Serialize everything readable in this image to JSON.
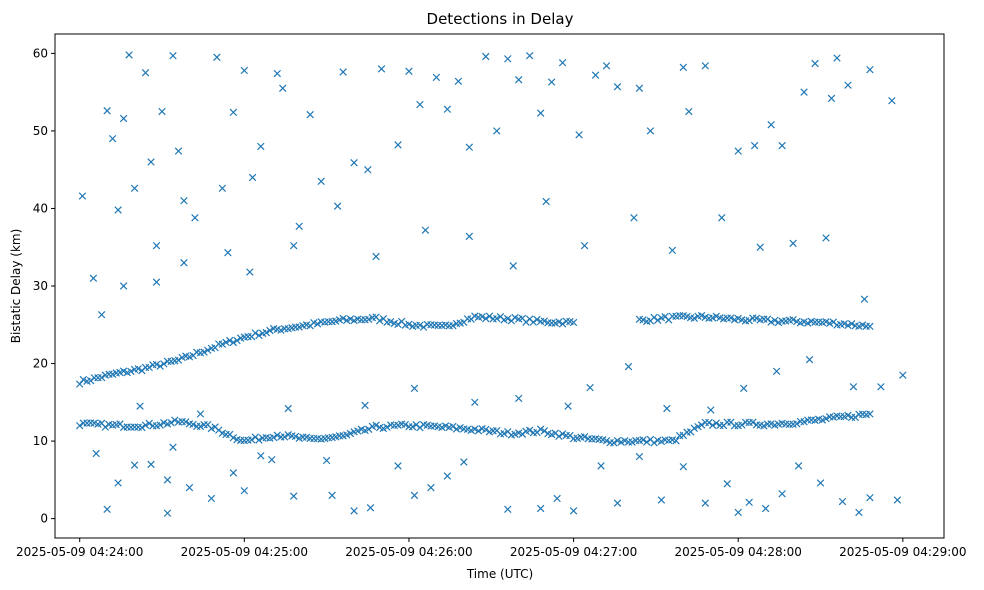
{
  "chart_data": {
    "type": "scatter",
    "title": "Detections in Delay",
    "xlabel": "Time (UTC)",
    "ylabel": "Bistatic Delay (km)",
    "x_axis": {
      "type": "time",
      "range": [
        "2025-05-09 04:23:51",
        "2025-05-09 04:29:15"
      ],
      "ticks": [
        "2025-05-09 04:24:00",
        "2025-05-09 04:25:00",
        "2025-05-09 04:26:00",
        "2025-05-09 04:27:00",
        "2025-05-09 04:28:00",
        "2025-05-09 04:29:00"
      ]
    },
    "ylim": [
      -2.5,
      62.5
    ],
    "yticks": [
      0,
      10,
      20,
      30,
      40,
      50,
      60
    ],
    "marker": "x",
    "color": "#1f77b4",
    "grid": false,
    "series": [
      {
        "tracks": [
          {
            "description_kind": "track",
            "points": [
              [
                "04:24:00",
                17.6
              ],
              [
                "04:24:12",
                18.6
              ],
              [
                "04:24:24",
                19.4
              ],
              [
                "04:24:36",
                20.4
              ],
              [
                "04:24:48",
                22.0
              ],
              [
                "04:25:00",
                23.4
              ],
              [
                "04:25:12",
                24.4
              ],
              [
                "04:25:24",
                25.0
              ],
              [
                "04:25:36",
                25.6
              ],
              [
                "04:25:48",
                25.8
              ],
              [
                "04:26:00",
                25.0
              ],
              [
                "04:26:12",
                24.7
              ],
              [
                "04:26:24",
                26.0
              ],
              [
                "04:26:36",
                25.8
              ],
              [
                "04:26:48",
                25.4
              ],
              [
                "04:27:00",
                25.3
              ]
            ]
          },
          {
            "description_kind": "track",
            "points": [
              [
                "04:27:24",
                25.6
              ],
              [
                "04:27:36",
                25.9
              ],
              [
                "04:27:48",
                26.0
              ],
              [
                "04:28:00",
                25.7
              ],
              [
                "04:28:12",
                25.5
              ],
              [
                "04:28:24",
                25.4
              ],
              [
                "04:28:36",
                25.2
              ],
              [
                "04:28:48",
                24.8
              ]
            ]
          },
          {
            "description_kind": "track",
            "points": [
              [
                "04:24:00",
                12.2
              ],
              [
                "04:24:12",
                12.0
              ],
              [
                "04:24:24",
                12.0
              ],
              [
                "04:24:36",
                12.5
              ],
              [
                "04:24:48",
                11.8
              ],
              [
                "04:25:00",
                10.0
              ],
              [
                "04:25:12",
                10.8
              ],
              [
                "04:25:24",
                10.2
              ],
              [
                "04:25:36",
                10.6
              ],
              [
                "04:25:48",
                11.8
              ],
              [
                "04:26:00",
                12.0
              ],
              [
                "04:26:12",
                11.8
              ],
              [
                "04:26:24",
                11.5
              ],
              [
                "04:26:36",
                11.0
              ],
              [
                "04:26:48",
                11.3
              ],
              [
                "04:27:00",
                10.5
              ],
              [
                "04:27:12",
                10.0
              ],
              [
                "04:27:24",
                10.0
              ],
              [
                "04:27:36",
                10.0
              ],
              [
                "04:27:48",
                12.2
              ],
              [
                "04:28:00",
                12.2
              ],
              [
                "04:28:12",
                12.2
              ],
              [
                "04:28:24",
                12.5
              ],
              [
                "04:28:36",
                13.0
              ],
              [
                "04:28:48",
                13.5
              ]
            ]
          }
        ],
        "scatter_points": [
          [
            "04:24:01",
            41.6
          ],
          [
            "04:24:05",
            31.0
          ],
          [
            "04:24:08",
            26.3
          ],
          [
            "04:24:10",
            52.6
          ],
          [
            "04:24:12",
            49.0
          ],
          [
            "04:24:14",
            39.8
          ],
          [
            "04:24:16",
            51.6
          ],
          [
            "04:24:18",
            59.8
          ],
          [
            "04:24:20",
            42.6
          ],
          [
            "04:24:24",
            57.5
          ],
          [
            "04:24:26",
            46.0
          ],
          [
            "04:24:28",
            35.2
          ],
          [
            "04:24:30",
            52.5
          ],
          [
            "04:24:32",
            0.7
          ],
          [
            "04:24:34",
            59.7
          ],
          [
            "04:24:36",
            47.4
          ],
          [
            "04:24:38",
            41.0
          ],
          [
            "04:24:42",
            38.8
          ],
          [
            "04:24:50",
            59.5
          ],
          [
            "04:24:52",
            42.6
          ],
          [
            "04:24:56",
            52.4
          ],
          [
            "04:25:00",
            57.8
          ],
          [
            "04:25:03",
            44.0
          ],
          [
            "04:25:06",
            48.0
          ],
          [
            "04:25:12",
            57.4
          ],
          [
            "04:25:14",
            55.5
          ],
          [
            "04:25:18",
            35.2
          ],
          [
            "04:25:24",
            52.1
          ],
          [
            "04:25:28",
            43.5
          ],
          [
            "04:25:36",
            57.6
          ],
          [
            "04:25:40",
            45.9
          ],
          [
            "04:25:45",
            45.0
          ],
          [
            "04:25:50",
            58.0
          ],
          [
            "04:25:56",
            48.2
          ],
          [
            "04:26:00",
            57.7
          ],
          [
            "04:26:04",
            53.4
          ],
          [
            "04:26:10",
            56.9
          ],
          [
            "04:26:14",
            52.8
          ],
          [
            "04:26:18",
            56.4
          ],
          [
            "04:26:22",
            47.9
          ],
          [
            "04:26:28",
            59.6
          ],
          [
            "04:26:32",
            50.0
          ],
          [
            "04:26:36",
            59.3
          ],
          [
            "04:26:40",
            56.6
          ],
          [
            "04:26:44",
            59.7
          ],
          [
            "04:26:48",
            52.3
          ],
          [
            "04:26:52",
            56.3
          ],
          [
            "04:26:56",
            58.8
          ],
          [
            "04:27:02",
            49.5
          ],
          [
            "04:27:08",
            57.2
          ],
          [
            "04:27:12",
            58.4
          ],
          [
            "04:27:16",
            55.7
          ],
          [
            "04:27:24",
            55.5
          ],
          [
            "04:27:28",
            50.0
          ],
          [
            "04:27:40",
            58.2
          ],
          [
            "04:27:42",
            52.5
          ],
          [
            "04:27:48",
            58.4
          ],
          [
            "04:28:00",
            47.4
          ],
          [
            "04:28:06",
            48.1
          ],
          [
            "04:28:12",
            50.8
          ],
          [
            "04:28:16",
            48.1
          ],
          [
            "04:28:24",
            55.0
          ],
          [
            "04:28:28",
            58.7
          ],
          [
            "04:28:34",
            54.2
          ],
          [
            "04:28:36",
            59.4
          ],
          [
            "04:28:40",
            55.9
          ],
          [
            "04:28:48",
            57.9
          ],
          [
            "04:28:56",
            53.9
          ],
          [
            "04:24:10",
            1.2
          ],
          [
            "04:24:14",
            4.6
          ],
          [
            "04:24:20",
            6.9
          ],
          [
            "04:24:26",
            7.0
          ],
          [
            "04:24:32",
            5.0
          ],
          [
            "04:24:40",
            4.0
          ],
          [
            "04:24:48",
            2.6
          ],
          [
            "04:24:56",
            5.9
          ],
          [
            "04:25:00",
            3.6
          ],
          [
            "04:25:10",
            7.6
          ],
          [
            "04:25:18",
            2.9
          ],
          [
            "04:25:32",
            3.0
          ],
          [
            "04:25:40",
            1.0
          ],
          [
            "04:25:46",
            1.4
          ],
          [
            "04:25:56",
            6.8
          ],
          [
            "04:26:02",
            3.0
          ],
          [
            "04:26:08",
            4.0
          ],
          [
            "04:26:14",
            5.5
          ],
          [
            "04:26:20",
            7.3
          ],
          [
            "04:26:36",
            1.2
          ],
          [
            "04:26:48",
            1.3
          ],
          [
            "04:26:54",
            2.6
          ],
          [
            "04:27:00",
            1.0
          ],
          [
            "04:27:10",
            6.8
          ],
          [
            "04:27:16",
            2.0
          ],
          [
            "04:27:24",
            8.0
          ],
          [
            "04:27:32",
            2.4
          ],
          [
            "04:27:40",
            6.7
          ],
          [
            "04:27:48",
            2.0
          ],
          [
            "04:27:56",
            4.5
          ],
          [
            "04:28:00",
            0.8
          ],
          [
            "04:28:04",
            2.1
          ],
          [
            "04:28:10",
            1.3
          ],
          [
            "04:28:16",
            3.2
          ],
          [
            "04:28:22",
            6.8
          ],
          [
            "04:28:30",
            4.6
          ],
          [
            "04:28:38",
            2.2
          ],
          [
            "04:28:44",
            0.8
          ],
          [
            "04:28:48",
            2.7
          ],
          [
            "04:28:58",
            2.4
          ],
          [
            "04:24:06",
            8.4
          ],
          [
            "04:24:22",
            14.5
          ],
          [
            "04:24:34",
            9.2
          ],
          [
            "04:24:44",
            13.5
          ],
          [
            "04:25:06",
            8.1
          ],
          [
            "04:25:16",
            14.2
          ],
          [
            "04:25:30",
            7.5
          ],
          [
            "04:25:44",
            14.6
          ],
          [
            "04:26:02",
            16.8
          ],
          [
            "04:26:24",
            15.0
          ],
          [
            "04:26:40",
            15.5
          ],
          [
            "04:26:58",
            14.5
          ],
          [
            "04:27:06",
            16.9
          ],
          [
            "04:27:20",
            19.6
          ],
          [
            "04:27:34",
            14.2
          ],
          [
            "04:27:50",
            14.0
          ],
          [
            "04:28:02",
            16.8
          ],
          [
            "04:28:14",
            19.0
          ],
          [
            "04:28:26",
            20.5
          ],
          [
            "04:28:42",
            17.0
          ],
          [
            "04:28:52",
            17.0
          ],
          [
            "04:29:00",
            18.5
          ],
          [
            "04:24:16",
            30.0
          ],
          [
            "04:24:28",
            30.5
          ],
          [
            "04:24:38",
            33.0
          ],
          [
            "04:24:54",
            34.3
          ],
          [
            "04:25:02",
            31.8
          ],
          [
            "04:25:20",
            37.7
          ],
          [
            "04:25:34",
            40.3
          ],
          [
            "04:25:48",
            33.8
          ],
          [
            "04:26:06",
            37.2
          ],
          [
            "04:26:22",
            36.4
          ],
          [
            "04:26:38",
            32.6
          ],
          [
            "04:26:50",
            40.9
          ],
          [
            "04:27:04",
            35.2
          ],
          [
            "04:27:22",
            38.8
          ],
          [
            "04:27:36",
            34.6
          ],
          [
            "04:27:54",
            38.8
          ],
          [
            "04:28:08",
            35.0
          ],
          [
            "04:28:20",
            35.5
          ],
          [
            "04:28:32",
            36.2
          ],
          [
            "04:28:46",
            28.3
          ]
        ]
      }
    ]
  }
}
